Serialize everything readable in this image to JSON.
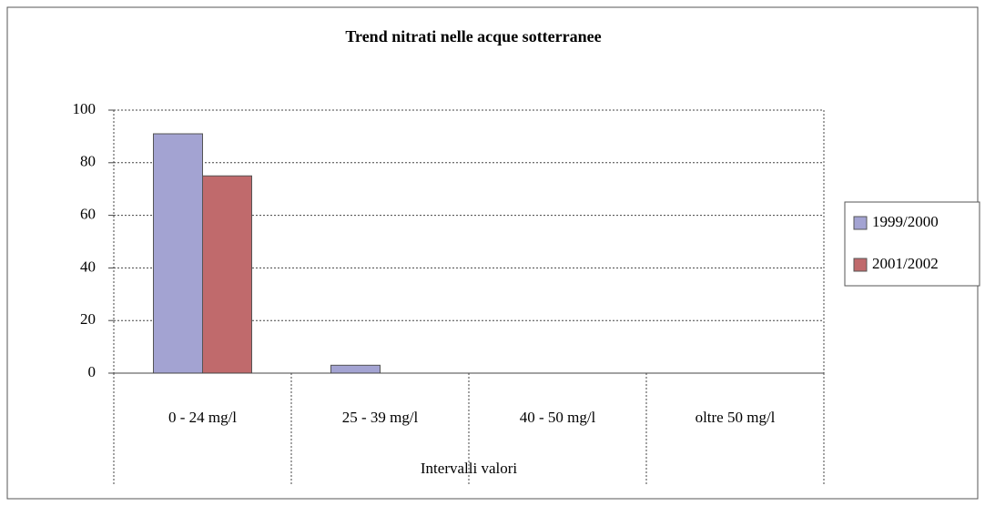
{
  "chart_data": {
    "type": "bar",
    "title": "Trend nitrati nelle acque sotterranee",
    "x_label": "Intervalli valori",
    "categories": [
      "0 - 24 mg/l",
      "25 - 39 mg/l",
      "40 - 50 mg/l",
      "oltre 50 mg/l"
    ],
    "series": [
      {
        "name": "1999/2000",
        "color": "#a3a3d2",
        "values": [
          91,
          3,
          0,
          0
        ]
      },
      {
        "name": "2001/2002",
        "color": "#c06a6c",
        "values": [
          75,
          0,
          0,
          0
        ]
      }
    ],
    "ylim": [
      0,
      100
    ],
    "yticks": [
      0,
      20,
      40,
      60,
      80,
      100
    ],
    "grid": true,
    "legend": "right"
  }
}
